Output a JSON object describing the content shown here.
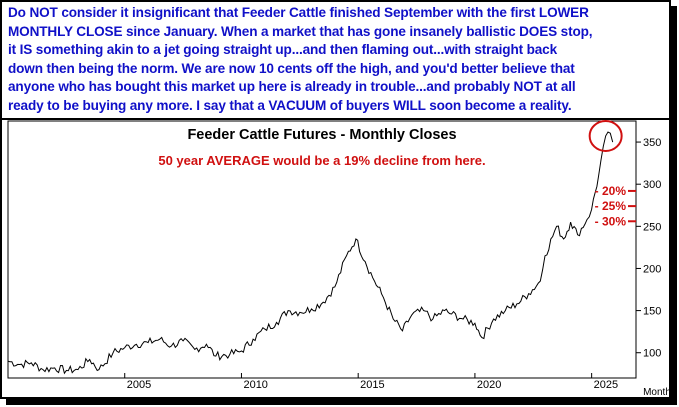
{
  "commentary": {
    "segments": [
      {
        "text": "Do NOT consider it insignificant that Feeder Cattle finished September with the first LOWER MONTHLY CLOSE since January. When a market that has gone insanely ballistic DOES stop, it IS something akin to a jet going straight up...and then flaming out...with straight back down then being the norm. We are now 10 cents off the high, and you'd better believe that anyone who has bought this market up here is already in trouble...and probably NOT at all ready to be buying any more. I say that a VACUUM of buyers WILL soon become a reality."
      }
    ],
    "lines": [
      "Do NOT consider it insignificant that Feeder Cattle finished September with the first LOWER",
      "MONTHLY CLOSE since January. When a market that has gone insanely ballistic DOES stop,",
      "it IS something akin to a jet going straight up...and then flaming out...with straight back",
      "down then being the norm. We are now 10 cents off the high, and you'd better believe that",
      "anyone who has bought this market up here is already in trouble...and probably NOT at all",
      "ready to be buying any more. I say that a VACUUM of buyers WILL soon become a reality."
    ],
    "color": "#1010c8"
  },
  "chart_data": {
    "type": "line",
    "title": "Feeder Cattle Futures - Monthly Closes",
    "annotation": "50 year AVERAGE would be a 19% decline from here.",
    "annotation_color": "#d01010",
    "xlabel": "Month",
    "x_ticks": [
      "2005",
      "2010",
      "2015",
      "2020",
      "2025"
    ],
    "y_ticks": [
      100,
      150,
      200,
      250,
      300,
      350
    ],
    "ylim": [
      70,
      375
    ],
    "xlim": [
      2000.0,
      2026.9
    ],
    "grid": false,
    "decline_markers": [
      {
        "label": "- 20%",
        "value": 292
      },
      {
        "label": "- 25%",
        "value": 274
      },
      {
        "label": "- 30%",
        "value": 256
      }
    ],
    "highlight": {
      "type": "circle",
      "x": 2025.6,
      "y": 362,
      "color": "#d01010"
    },
    "series": [
      {
        "name": "",
        "color": "#000000",
        "points": [
          [
            2000.0,
            90
          ],
          [
            2000.5,
            86
          ],
          [
            2001.0,
            88
          ],
          [
            2001.5,
            80
          ],
          [
            2002.0,
            82
          ],
          [
            2002.5,
            79
          ],
          [
            2003.0,
            80
          ],
          [
            2003.5,
            92
          ],
          [
            2003.9,
            80
          ],
          [
            2004.5,
            100
          ],
          [
            2005.0,
            106
          ],
          [
            2005.5,
            110
          ],
          [
            2006.0,
            112
          ],
          [
            2006.5,
            116
          ],
          [
            2007.0,
            108
          ],
          [
            2007.5,
            114
          ],
          [
            2008.0,
            104
          ],
          [
            2008.5,
            110
          ],
          [
            2008.9,
            96
          ],
          [
            2009.5,
            98
          ],
          [
            2010.0,
            102
          ],
          [
            2010.5,
            116
          ],
          [
            2011.0,
            128
          ],
          [
            2011.5,
            136
          ],
          [
            2012.0,
            150
          ],
          [
            2012.5,
            148
          ],
          [
            2013.0,
            152
          ],
          [
            2013.5,
            160
          ],
          [
            2014.0,
            178
          ],
          [
            2014.5,
            215
          ],
          [
            2014.9,
            235
          ],
          [
            2015.3,
            208
          ],
          [
            2015.7,
            185
          ],
          [
            2016.0,
            170
          ],
          [
            2016.5,
            140
          ],
          [
            2016.9,
            126
          ],
          [
            2017.3,
            145
          ],
          [
            2017.8,
            150
          ],
          [
            2018.2,
            140
          ],
          [
            2018.7,
            150
          ],
          [
            2019.0,
            146
          ],
          [
            2019.5,
            140
          ],
          [
            2020.0,
            135
          ],
          [
            2020.3,
            118
          ],
          [
            2020.8,
            140
          ],
          [
            2021.3,
            150
          ],
          [
            2021.8,
            158
          ],
          [
            2022.3,
            170
          ],
          [
            2022.8,
            185
          ],
          [
            2023.0,
            215
          ],
          [
            2023.5,
            250
          ],
          [
            2023.8,
            235
          ],
          [
            2024.1,
            255
          ],
          [
            2024.4,
            240
          ],
          [
            2024.8,
            258
          ],
          [
            2025.0,
            270
          ],
          [
            2025.3,
            310
          ],
          [
            2025.5,
            345
          ],
          [
            2025.7,
            362
          ],
          [
            2025.9,
            350
          ]
        ]
      }
    ]
  }
}
